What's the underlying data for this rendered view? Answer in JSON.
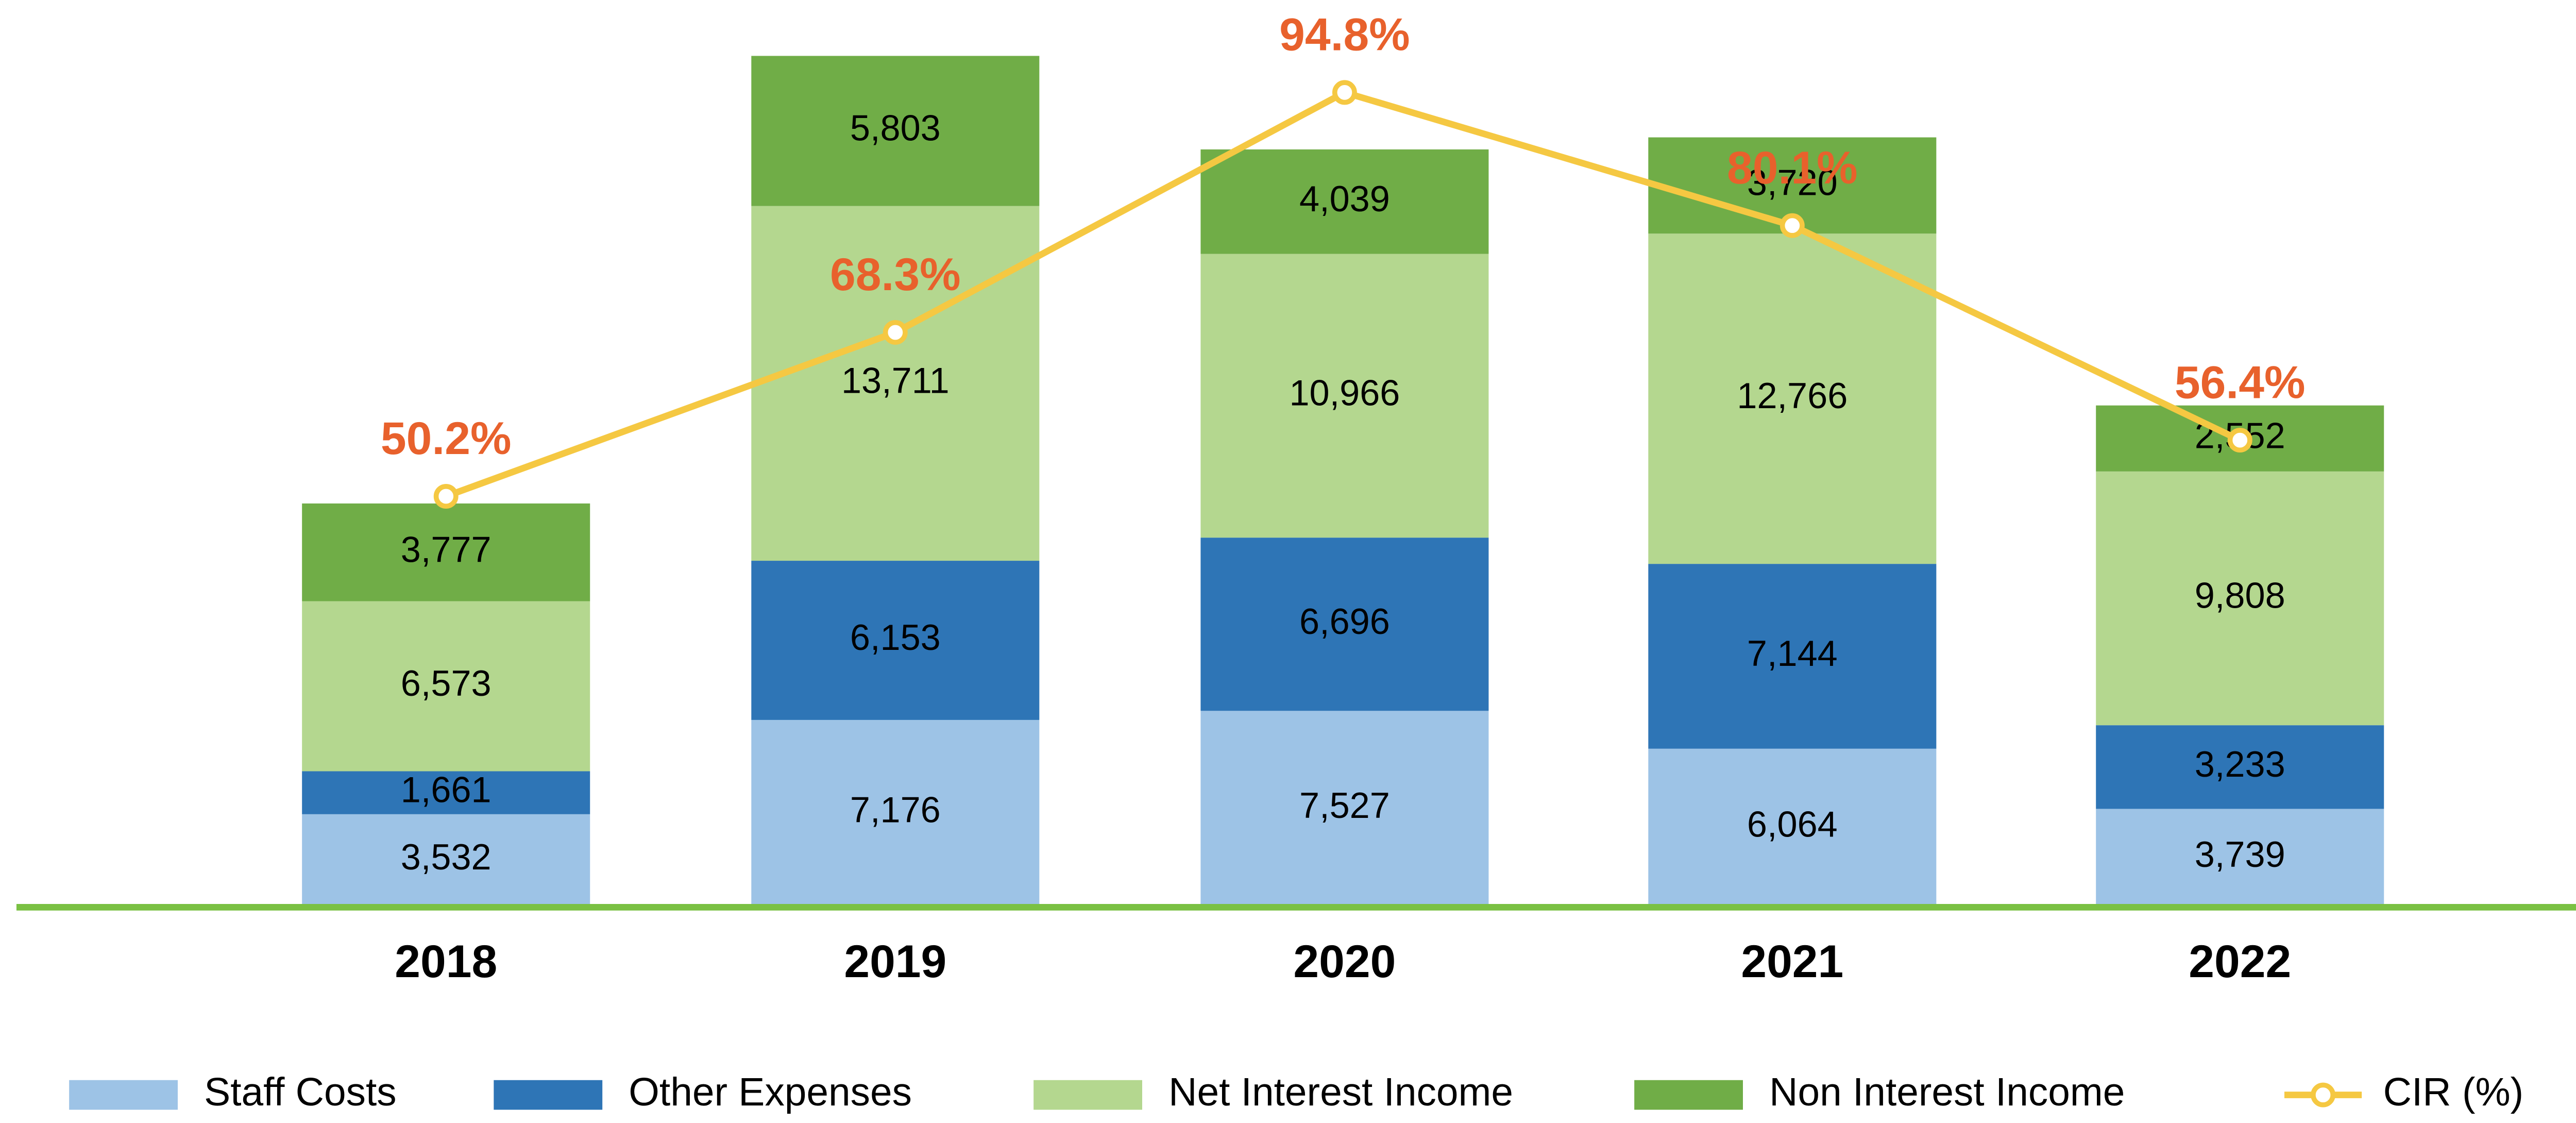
{
  "chart_data": {
    "type": "bar",
    "stacked": true,
    "categories": [
      "2018",
      "2019",
      "2020",
      "2021",
      "2022"
    ],
    "series": [
      {
        "name": "Staff Costs",
        "color": "#9dc3e6",
        "values": [
          3532,
          7176,
          7527,
          6064,
          3739
        ],
        "value_labels": [
          "3,532",
          "7,176",
          "7,527",
          "6,064",
          "3,739"
        ]
      },
      {
        "name": "Other Expenses",
        "color": "#2e75b6",
        "values": [
          1661,
          6153,
          6696,
          7144,
          3233
        ],
        "value_labels": [
          "1,661",
          "6,153",
          "6,696",
          "7,144",
          "3,233"
        ]
      },
      {
        "name": "Net Interest Income",
        "color": "#b4d78f",
        "values": [
          6573,
          13711,
          10966,
          12766,
          9808
        ],
        "value_labels": [
          "6,573",
          "13,711",
          "10,966",
          "12,766",
          "9,808"
        ]
      },
      {
        "name": "Non Interest Income",
        "color": "#70ad47",
        "values": [
          3777,
          5803,
          4039,
          3720,
          2552
        ],
        "value_labels": [
          "3,777",
          "5,803",
          "4,039",
          "3,720",
          "2,552"
        ]
      },
      {
        "name": "CIR (%)",
        "type": "line",
        "axis": "y2",
        "color": "#f5c842",
        "label_color": "#e8612c",
        "values": [
          50.2,
          68.3,
          94.8,
          80.1,
          56.4
        ],
        "value_labels": [
          "50.2%",
          "68.3%",
          "94.8%",
          "80.1%",
          "56.4%"
        ]
      }
    ],
    "ylim": [
      0,
      35000
    ],
    "y2lim": [
      5,
      105
    ],
    "grid": false,
    "legend": "bottom",
    "baseline_color": "#7ac143"
  }
}
